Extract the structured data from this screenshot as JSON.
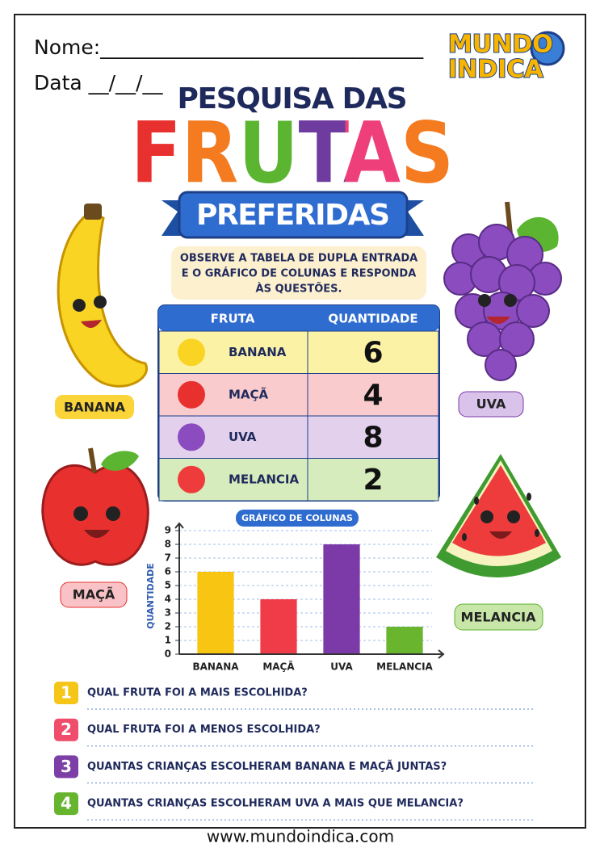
{
  "header": {
    "name_label": "Nome:________________________________",
    "date_label": "Data __/__/__",
    "logo": [
      "MUNDO",
      "INDICA"
    ]
  },
  "title": {
    "line1": "PESQUISA DAS",
    "line2": "FRUTAS",
    "line3": "PREFERIDAS"
  },
  "instruction": [
    "OBSERVE A TABELA DE DUPLA ENTRADA",
    "E O GRÁFICO DE COLUNAS E RESPONDA",
    "ÀS QUESTÕES."
  ],
  "fruit_labels": [
    "BANANA",
    "UVA",
    "MAÇÃ",
    "MELANCIA"
  ],
  "table": {
    "headers": [
      "FRUTA",
      "QUANTIDADE"
    ],
    "rows": [
      [
        "BANANA",
        6
      ],
      [
        "MAÇÃ",
        4
      ],
      [
        "UVA",
        8
      ],
      [
        "MELANCIA",
        2
      ]
    ]
  },
  "chart_data": {
    "type": "bar",
    "title": "GRÁFICO DE COLUNAS",
    "y_label": "QUANTIDADE",
    "categories": [
      "BANANA",
      "MAÇÃ",
      "UVA",
      "MELANCIA"
    ],
    "values": [
      6,
      4,
      8,
      2
    ],
    "colors": [
      "#f7c512",
      "#f03c48",
      "#7b3aa8",
      "#69b52d"
    ],
    "ylim": [
      0,
      9
    ],
    "yticks": [
      0,
      1,
      2,
      3,
      4,
      5,
      6,
      7,
      8,
      9
    ],
    "grid": true
  },
  "questions": [
    {
      "number": 1,
      "text": "QUAL FRUTA FOI A MAIS ESCOLHIDA?"
    },
    {
      "number": 2,
      "text": "QUAL FRUTA FOI A MENOS ESCOLHIDA?"
    },
    {
      "number": 3,
      "text": "QUANTAS CRIANÇAS ESCOLHERAM BANANA E MAÇÃ JUNTAS?"
    },
    {
      "number": 4,
      "text": "QUANTAS CRIANÇAS ESCOLHERAM UVA A MAIS QUE MELANCIA?"
    }
  ],
  "footer": "www.mundoindica.com"
}
